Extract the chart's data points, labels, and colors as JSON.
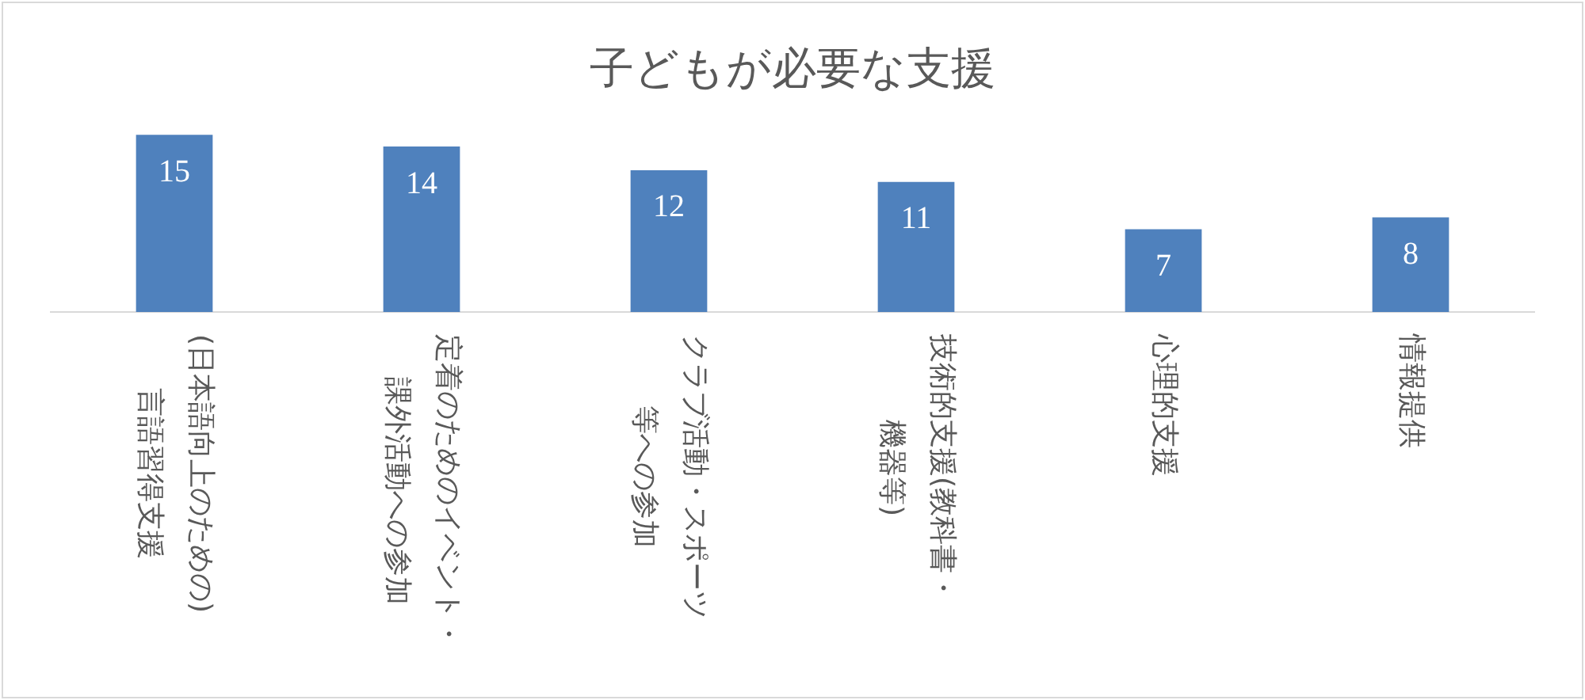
{
  "chart_data": {
    "type": "bar",
    "title": "子どもが必要な支援",
    "categories": [
      "(日本語向上のための)言語習得支援",
      "定着のためのイベント・課外活動への参加",
      "クラブ活動・スポーツ等への参加",
      "技術的支援(教科書・機器等)",
      "心理的支援",
      "情報提供"
    ],
    "values": [
      15,
      14,
      12,
      11,
      7,
      8
    ],
    "color": "#4f81bd",
    "data_labels": true,
    "legend": false
  }
}
